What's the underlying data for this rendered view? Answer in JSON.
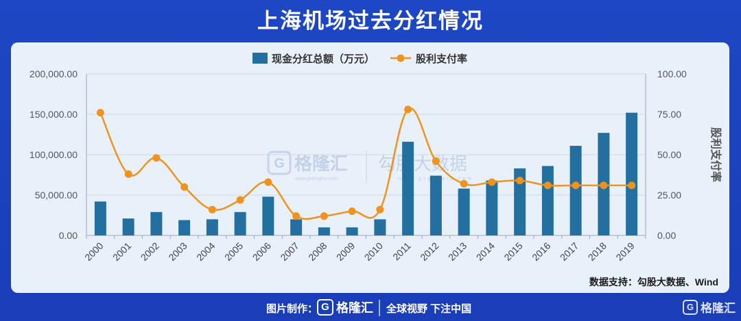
{
  "title": "上海机场过去分红情况",
  "source": "数据支持：勾股大数据、Wind",
  "footer": {
    "made_by": "图片制作：",
    "brand": "格隆汇",
    "slogan": "全球视野 下注中国",
    "logo_letter": "G"
  },
  "watermark": {
    "brand": "格隆汇",
    "brand_url": "www.gelonghui.com",
    "data_brand": "勾股大数据",
    "data_url": "www.gogudata.com"
  },
  "colors": {
    "background": "#1d47c4",
    "bar": "#236fa0",
    "line": "#f0921e",
    "card": "#e8f1f9"
  },
  "chart_data": {
    "type": "bar",
    "categories": [
      "2000",
      "2001",
      "2002",
      "2003",
      "2004",
      "2005",
      "2006",
      "2007",
      "2008",
      "2009",
      "2010",
      "2011",
      "2012",
      "2013",
      "2014",
      "2015",
      "2016",
      "2017",
      "2018",
      "2019"
    ],
    "series": [
      {
        "name": "现金分红总额（万元）",
        "type": "bar",
        "axis": "left",
        "values": [
          42000,
          21000,
          29000,
          19000,
          20000,
          29000,
          48000,
          20000,
          10000,
          10000,
          20000,
          116000,
          74000,
          58000,
          68000,
          83000,
          86000,
          111000,
          127000,
          152000
        ]
      },
      {
        "name": "股利支付率",
        "type": "line",
        "axis": "right",
        "values": [
          76,
          38,
          48,
          30,
          16,
          22,
          33,
          12,
          12,
          15,
          16,
          78,
          46,
          32,
          33,
          34,
          31,
          31,
          31,
          31
        ]
      }
    ],
    "y_left": {
      "min": 0,
      "max": 200000,
      "ticks": [
        "0.00",
        "50,000.00",
        "100,000.00",
        "150,000.00",
        "200,000.00"
      ]
    },
    "y_right": {
      "min": 0,
      "max": 100,
      "ticks": [
        "0.00",
        "25.00",
        "50.00",
        "75.00",
        "100.00"
      ],
      "label": "股利支付率"
    },
    "legend": "top-center",
    "grid": true
  }
}
